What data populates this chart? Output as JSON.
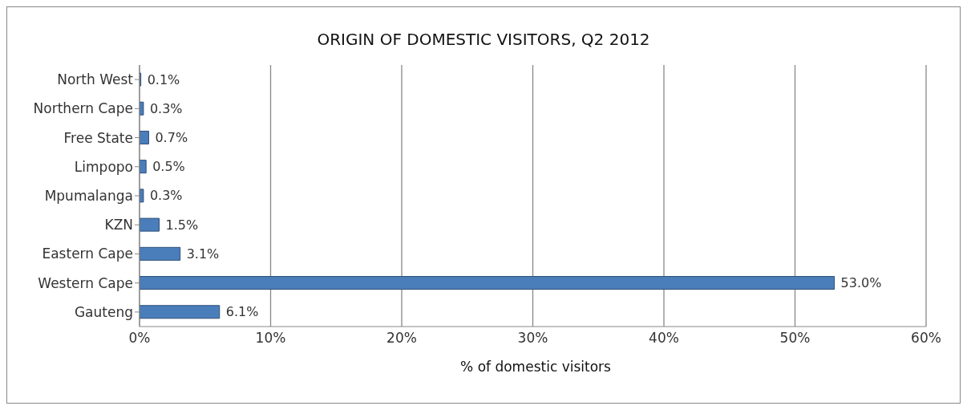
{
  "chart_data": {
    "type": "bar",
    "orientation": "horizontal",
    "title": "ORIGIN OF DOMESTIC VISITORS, Q2 2012",
    "xlabel": "% of domestic visitors",
    "categories": [
      "North West",
      "Northern Cape",
      "Free State",
      "Limpopo",
      "Mpumalanga",
      "KZN",
      "Eastern Cape",
      "Western Cape",
      "Gauteng"
    ],
    "values": [
      0.1,
      0.3,
      0.7,
      0.5,
      0.3,
      1.5,
      3.1,
      53.0,
      6.1
    ],
    "value_labels": [
      "0.1%",
      "0.3%",
      "0.7%",
      "0.5%",
      "0.3%",
      "1.5%",
      "3.1%",
      "53.0%",
      "6.1%"
    ],
    "color": "#4a7ebb",
    "xlim": [
      0,
      60
    ],
    "xticks": [
      {
        "value": 0,
        "label": "0%"
      },
      {
        "value": 10,
        "label": "10%"
      },
      {
        "value": 20,
        "label": "20%"
      },
      {
        "value": 30,
        "label": "30%"
      },
      {
        "value": 40,
        "label": "40%"
      },
      {
        "value": 50,
        "label": "50%"
      },
      {
        "value": 60,
        "label": "60%"
      }
    ],
    "grid": "x",
    "legend": false
  }
}
